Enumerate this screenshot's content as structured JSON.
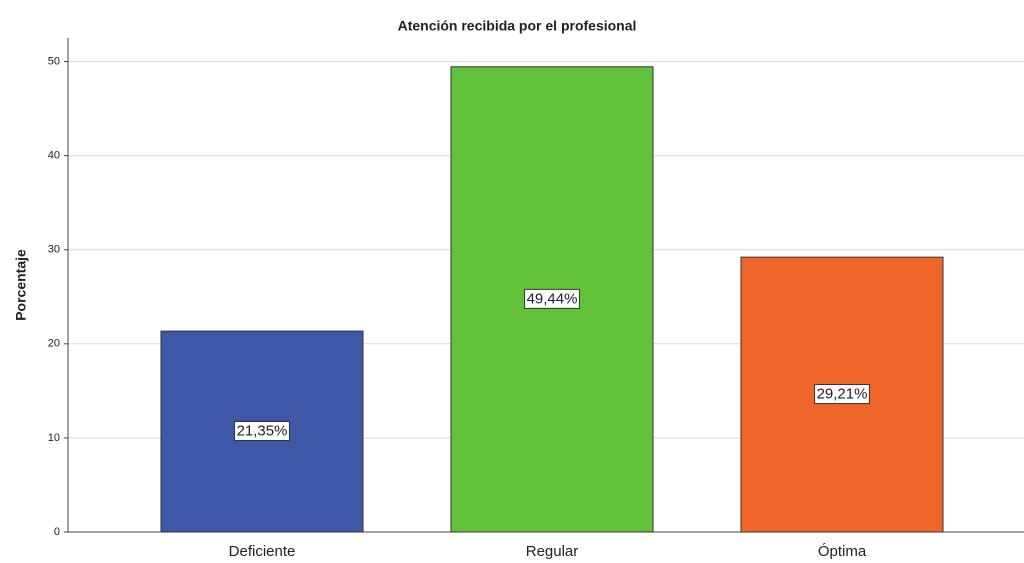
{
  "chart_data": {
    "type": "bar",
    "title": "Atención recibida por el profesional",
    "y_label": "Porcentaje",
    "categories": [
      "Deficiente",
      "Regular",
      "Óptima"
    ],
    "values": [
      21.35,
      49.44,
      29.21
    ],
    "value_labels": [
      "21,35%",
      "49,44%",
      "29,21%"
    ],
    "colors": [
      "#3e58a8",
      "#62c23a",
      "#f0662a"
    ],
    "ylim": [
      0,
      52.5
    ],
    "yticks": [
      0,
      10,
      20,
      30,
      40,
      50
    ],
    "grid": true
  }
}
